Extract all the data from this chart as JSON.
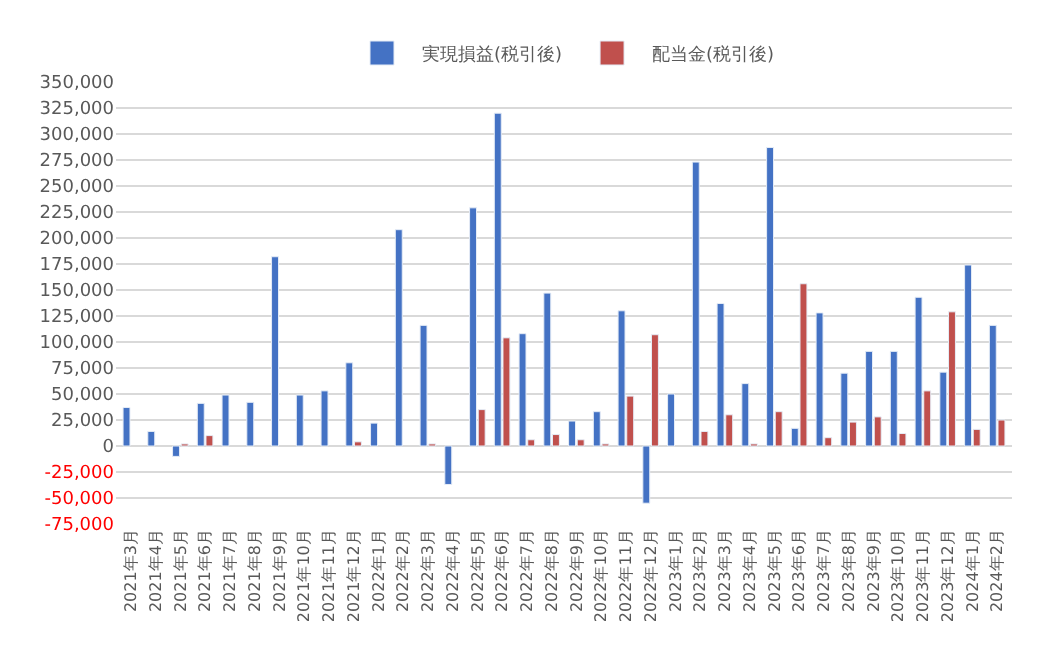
{
  "chart_data": {
    "type": "bar",
    "categories": [
      "2021年3月",
      "2021年4月",
      "2021年5月",
      "2021年6月",
      "2021年7月",
      "2021年8月",
      "2021年9月",
      "2021年10月",
      "2021年11月",
      "2021年12月",
      "2022年1月",
      "2022年2月",
      "2022年3月",
      "2022年4月",
      "2022年5月",
      "2022年6月",
      "2022年7月",
      "2022年8月",
      "2022年9月",
      "2022年10月",
      "2022年11月",
      "2022年12月",
      "2023年1月",
      "2023年2月",
      "2023年3月",
      "2023年4月",
      "2023年5月",
      "2023年6月",
      "2023年7月",
      "2023年8月",
      "2023年9月",
      "2023年10月",
      "2023年11月",
      "2023年12月",
      "2024年1月",
      "2024年2月"
    ],
    "series": [
      {
        "name": "実現損益(税引後)",
        "color": "#4472c4",
        "values": [
          37000,
          14000,
          -10000,
          41000,
          49000,
          42000,
          182000,
          49000,
          53000,
          80000,
          22000,
          208000,
          116000,
          -37000,
          229000,
          320000,
          108000,
          147000,
          24000,
          33000,
          130000,
          -55000,
          50000,
          273000,
          137000,
          60000,
          287000,
          17000,
          128000,
          70000,
          91000,
          91000,
          143000,
          71000,
          174000,
          116000
        ]
      },
      {
        "name": "配当金(税引後)",
        "color": "#c0504d",
        "values": [
          null,
          null,
          2000,
          10000,
          null,
          null,
          null,
          null,
          null,
          4000,
          null,
          null,
          2000,
          null,
          35000,
          104000,
          6000,
          11000,
          6000,
          2000,
          48000,
          107000,
          null,
          14000,
          30000,
          2000,
          33000,
          156000,
          8000,
          23000,
          28000,
          12000,
          53000,
          129000,
          16000,
          25000
        ]
      }
    ],
    "ylim": [
      -75000,
      350000
    ],
    "yticks": [
      {
        "value": -75000,
        "label": "-75,000"
      },
      {
        "value": -50000,
        "label": "-50,000"
      },
      {
        "value": -25000,
        "label": "-25,000"
      },
      0,
      {
        "value": 25000,
        "label": "25,000"
      },
      {
        "value": 50000,
        "label": "50,000"
      },
      {
        "value": 75000,
        "label": "75,000"
      },
      {
        "value": 100000,
        "label": "100,000"
      },
      {
        "value": 125000,
        "label": "125,000"
      },
      {
        "value": 150000,
        "label": "150,000"
      },
      {
        "value": 175000,
        "label": "175,000"
      },
      {
        "value": 200000,
        "label": "200,000"
      },
      {
        "value": 225000,
        "label": "225,000"
      },
      {
        "value": 250000,
        "label": "250,000"
      },
      {
        "value": 275000,
        "label": "275,000"
      },
      {
        "value": 300000,
        "label": "300,000"
      },
      {
        "value": 325000,
        "label": "325,000"
      },
      {
        "value": 350000,
        "label": "350,000"
      }
    ],
    "grid": "y",
    "legend": "top"
  }
}
